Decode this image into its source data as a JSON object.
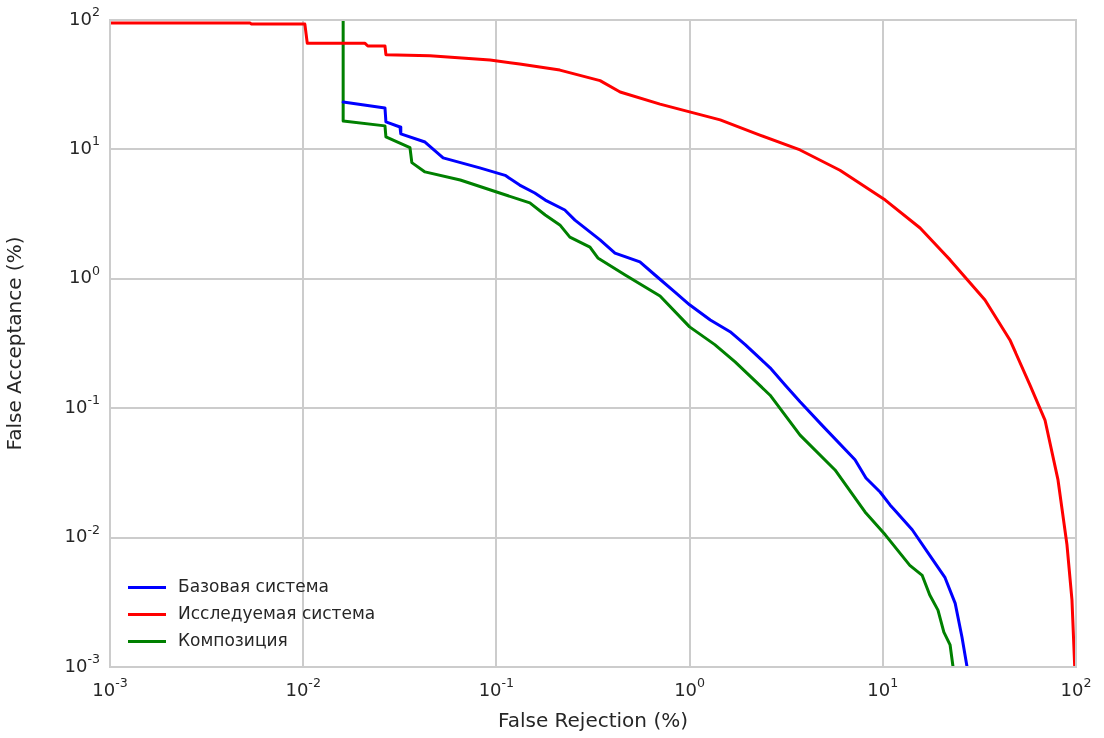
{
  "chart_data": {
    "type": "line",
    "xlabel": "False Rejection (%)",
    "ylabel": "False Acceptance (%)",
    "log": "xy",
    "grid": true,
    "legend": "bottom left",
    "line_style": "solid",
    "marker": "none",
    "xlim": [
      0.001,
      100
    ],
    "ylim": [
      0.001,
      100
    ],
    "xticks": [
      {
        "value": 0.001,
        "label": "10$^{-3}$"
      },
      {
        "value": 0.01,
        "label": "10$^{-2}$"
      },
      {
        "value": 0.1,
        "label": "10$^{-1}$"
      },
      {
        "value": 1,
        "label": "10$^{0}$"
      },
      {
        "value": 10,
        "label": "10$^{1}$"
      },
      {
        "value": 100,
        "label": "10$^{2}$"
      }
    ],
    "yticks": [
      {
        "value": 0.001,
        "label": "10$^{-3}$"
      },
      {
        "value": 0.01,
        "label": "10$^{-2}$"
      },
      {
        "value": 0.1,
        "label": "10$^{-1}$"
      },
      {
        "value": 1,
        "label": "10$^{0}$"
      },
      {
        "value": 10,
        "label": "10$^{1}$"
      },
      {
        "value": 100,
        "label": "10$^{2}$"
      }
    ],
    "series": [
      {
        "name": "Базовая система",
        "color": "#0000ff",
        "x": [
          0.0161,
          0.0265,
          0.0268,
          0.0317,
          0.032,
          0.0427,
          0.053,
          0.082,
          0.111,
          0.132,
          0.158,
          0.179,
          0.226,
          0.255,
          0.344,
          0.411,
          0.553,
          0.662,
          0.84,
          1.0,
          1.28,
          1.62,
          1.94,
          2.61,
          3.12,
          3.73,
          4.84,
          7.18,
          8.18,
          9.68,
          10.9,
          14.2,
          17.5,
          21.0,
          23.7,
          25.7,
          27.3
        ],
        "values": [
          23.2,
          20.9,
          16.3,
          14.9,
          13.2,
          11.4,
          8.6,
          7.2,
          6.3,
          5.3,
          4.6,
          4.06,
          3.4,
          2.84,
          2.0,
          1.58,
          1.35,
          1.07,
          0.79,
          0.63,
          0.48,
          0.39,
          0.31,
          0.205,
          0.151,
          0.112,
          0.074,
          0.04,
          0.0289,
          0.0225,
          0.0179,
          0.0115,
          0.0073,
          0.0049,
          0.0031,
          0.0017,
          0.001
        ]
      },
      {
        "name": "Исследуемая система",
        "color": "#ff0000",
        "x": [
          0.001,
          0.0053,
          0.0054,
          0.0102,
          0.0105,
          0.0209,
          0.0216,
          0.0265,
          0.0268,
          0.0453,
          0.0927,
          0.132,
          0.213,
          0.344,
          0.437,
          0.703,
          1.0,
          1.44,
          2.31,
          3.73,
          6.0,
          10.3,
          15.6,
          22.3,
          33.8,
          45.5,
          57.8,
          69.1,
          80.7,
          89.8,
          95.3,
          98.5
        ],
        "values": [
          95,
          95,
          93,
          93,
          66,
          66,
          63,
          63,
          54,
          53,
          49,
          45.7,
          41,
          34,
          27.8,
          22.4,
          19.5,
          16.9,
          12.9,
          9.9,
          6.9,
          4.06,
          2.47,
          1.4,
          0.686,
          0.337,
          0.151,
          0.081,
          0.0279,
          0.0088,
          0.0033,
          0.001
        ]
      },
      {
        "name": "Композиция",
        "color": "#008000",
        "x": [
          0.0161,
          0.0161,
          0.0265,
          0.0268,
          0.0357,
          0.0365,
          0.0427,
          0.065,
          0.104,
          0.149,
          0.179,
          0.213,
          0.24,
          0.305,
          0.335,
          0.464,
          0.703,
          1.0,
          1.35,
          1.72,
          2.61,
          3.73,
          5.66,
          8.09,
          10.3,
          13.8,
          16.0,
          17.5,
          19.3,
          20.7,
          22.3,
          23.1
        ],
        "values": [
          100,
          16.6,
          15.2,
          12.5,
          10.3,
          7.9,
          6.7,
          5.8,
          4.6,
          3.86,
          3.11,
          2.61,
          2.1,
          1.76,
          1.45,
          1.07,
          0.736,
          0.425,
          0.31,
          0.228,
          0.126,
          0.062,
          0.0333,
          0.0158,
          0.0105,
          0.0061,
          0.0051,
          0.0036,
          0.00275,
          0.00186,
          0.00148,
          0.001
        ]
      }
    ]
  }
}
